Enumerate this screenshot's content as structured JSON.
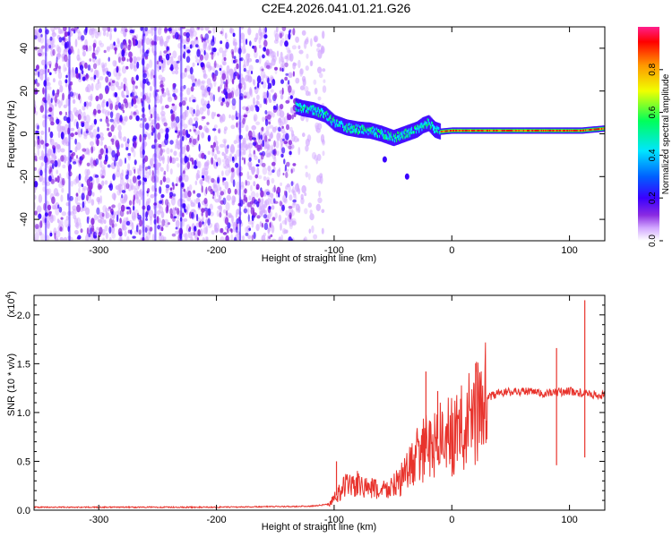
{
  "title": "C2E4.2026.041.01.21.G26",
  "chart_data": [
    {
      "type": "heatmap",
      "name": "spectrogram",
      "xlabel": "Height of straight line (km)",
      "ylabel": "Frequency (Hz)",
      "xlim": [
        -355,
        130
      ],
      "ylim": [
        -50,
        50
      ],
      "xticks": [
        -300,
        -200,
        -100,
        0,
        100
      ],
      "yticks": [
        -40,
        -20,
        0,
        20,
        40
      ],
      "colorbar": {
        "label": "Normalized spectral amplitude",
        "range": [
          0,
          1
        ],
        "ticks": [
          "0.0",
          "0.2",
          "0.4",
          "0.6",
          "0.8"
        ],
        "colors": [
          "#ffffff",
          "#d2a8ff",
          "#8a2be2",
          "#3a00ff",
          "#0060ff",
          "#00e5ff",
          "#00ff5a",
          "#f0ff00",
          "#ff9800",
          "#ff0000",
          "#ff1e8c"
        ]
      },
      "noise_region_km": [
        -355,
        -108
      ],
      "signal_track": {
        "x_km": [
          -133,
          -128,
          -118,
          -108,
          -100,
          -90,
          -80,
          -70,
          -60,
          -50,
          -40,
          -30,
          -25,
          -20,
          -15,
          -10,
          0,
          20,
          50,
          80,
          100,
          110,
          120,
          130
        ],
        "freq_hz": [
          13,
          12,
          11,
          9,
          5,
          3,
          2,
          1.5,
          0,
          -2,
          0,
          2,
          4,
          5,
          2,
          1,
          1.5,
          1.5,
          1.5,
          1.5,
          1.5,
          1.5,
          2,
          2.5
        ]
      }
    },
    {
      "type": "line",
      "name": "snr",
      "xlabel": "Height of straight line (km)",
      "ylabel": "SNR (10 * v/v)",
      "multiplier_label": "(x10",
      "multiplier_exp": "4",
      "xlim": [
        -355,
        130
      ],
      "ylim": [
        0,
        22000
      ],
      "xticks": [
        -300,
        -200,
        -100,
        0,
        100
      ],
      "yticks": [
        0,
        5000,
        10000,
        15000,
        20000
      ],
      "ytick_labels": [
        "0.0",
        "0.5",
        "1.0",
        "1.5",
        "2.0"
      ],
      "color": "#e8332c",
      "series": [
        {
          "name": "SNR",
          "x": [
            -355,
            -200,
            -120,
            -105,
            -98,
            -90,
            -80,
            -70,
            -60,
            -50,
            -40,
            -30,
            -20,
            -10,
            0,
            10,
            20,
            30,
            40,
            60,
            80,
            90,
            100,
            110,
            120,
            130
          ],
          "y": [
            300,
            300,
            400,
            600,
            1500,
            2500,
            2600,
            2200,
            2000,
            2400,
            3500,
            5500,
            6500,
            7500,
            7500,
            8500,
            10000,
            11500,
            12000,
            12200,
            11900,
            12100,
            12200,
            12000,
            11800,
            11800
          ]
        }
      ],
      "spikes": [
        {
          "x": -98,
          "y": 5000
        },
        {
          "x": -22,
          "y": 14200
        },
        {
          "x": -12,
          "y": 12200
        },
        {
          "x": 89,
          "y": 16600
        },
        {
          "x": 89,
          "y": 4600
        },
        {
          "x": 113,
          "y": 21500
        },
        {
          "x": 113,
          "y": 5400
        }
      ]
    }
  ]
}
